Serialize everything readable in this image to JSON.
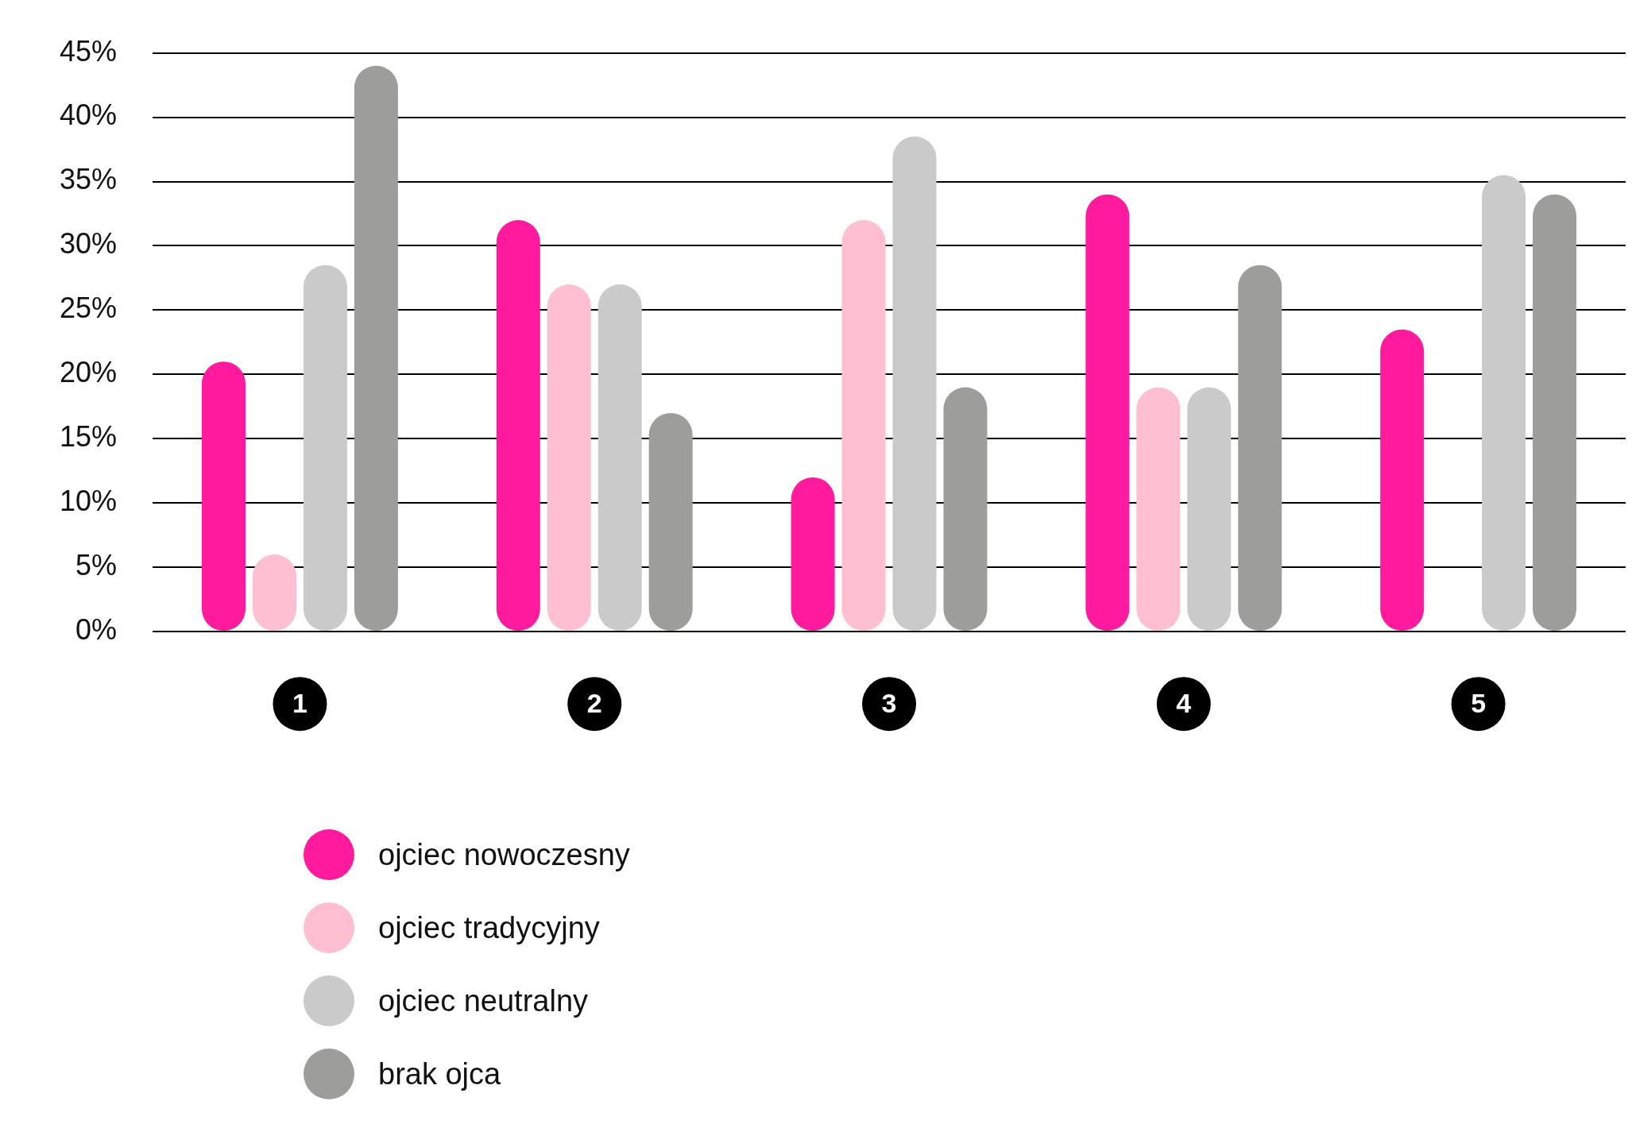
{
  "chart_data": {
    "type": "bar",
    "categories": [
      "1",
      "2",
      "3",
      "4",
      "5"
    ],
    "series": [
      {
        "name": "ojciec nowoczesny",
        "color": "#ff1a9e",
        "values": [
          21,
          32,
          12,
          34,
          23.5
        ]
      },
      {
        "name": "ojciec tradycyjny",
        "color": "#ffbfd2",
        "values": [
          6,
          27,
          32,
          19,
          null
        ]
      },
      {
        "name": "ojciec neutralny",
        "color": "#cacaca",
        "values": [
          28.5,
          27,
          38.5,
          19,
          35.5
        ]
      },
      {
        "name": "brak ojca",
        "color": "#9d9d9c",
        "values": [
          44,
          17,
          19,
          28.5,
          34
        ]
      }
    ],
    "ylim": [
      0,
      45
    ],
    "yticks": [
      {
        "value": 0,
        "label": "0%"
      },
      {
        "value": 5,
        "label": "5%"
      },
      {
        "value": 10,
        "label": "10%"
      },
      {
        "value": 15,
        "label": "15%"
      },
      {
        "value": 20,
        "label": "20%"
      },
      {
        "value": 25,
        "label": "25%"
      },
      {
        "value": 30,
        "label": "30%"
      },
      {
        "value": 35,
        "label": "35%"
      },
      {
        "value": 40,
        "label": "40%"
      },
      {
        "value": 45,
        "label": "45%"
      }
    ],
    "grid": "y",
    "legend": "bottom left"
  }
}
